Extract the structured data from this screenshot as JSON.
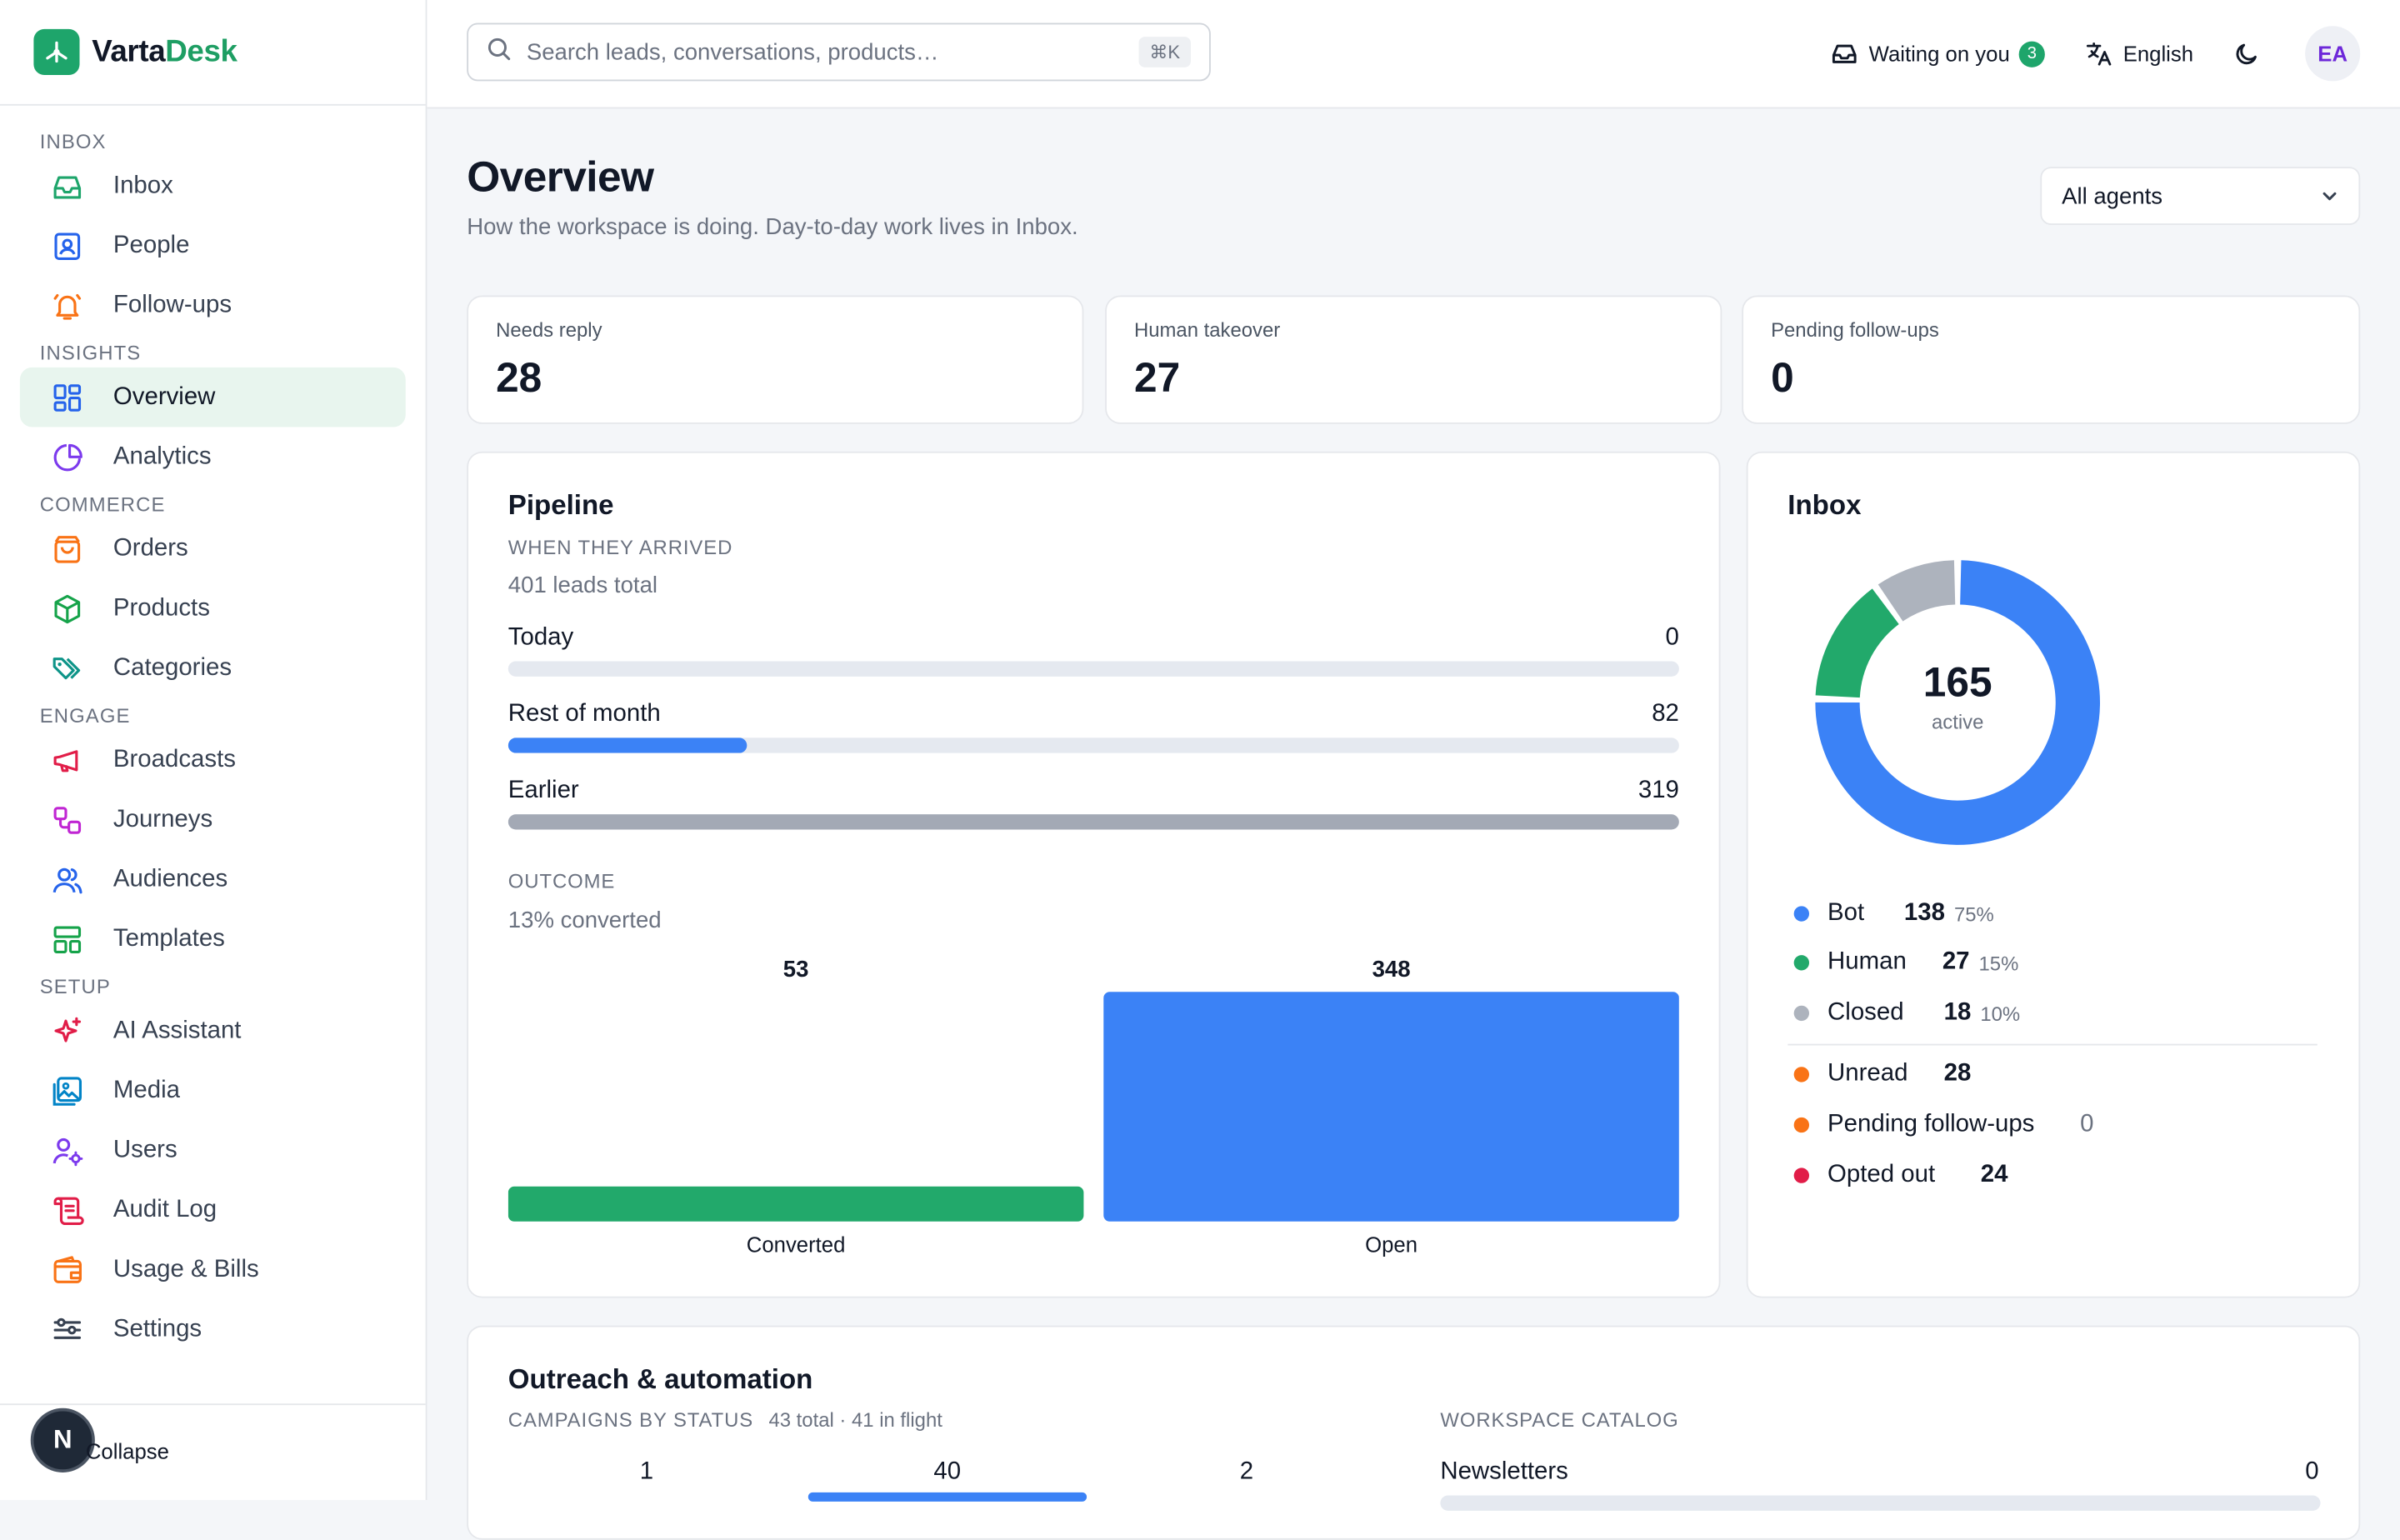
{
  "brand": {
    "prefix": "V",
    "name_dark": "arta",
    "name_green": "Desk"
  },
  "sidebar": {
    "sections": [
      {
        "label": "INBOX",
        "items": [
          {
            "label": "Inbox",
            "icon": "inbox-icon",
            "color": "#1ea56b"
          },
          {
            "label": "People",
            "icon": "contact-icon",
            "color": "#2563eb"
          },
          {
            "label": "Follow-ups",
            "icon": "bell-icon",
            "color": "#f97316"
          }
        ]
      },
      {
        "label": "INSIGHTS",
        "items": [
          {
            "label": "Overview",
            "icon": "grid-icon",
            "color": "#2563eb",
            "active": true
          },
          {
            "label": "Analytics",
            "icon": "pie-icon",
            "color": "#7c3aed"
          }
        ]
      },
      {
        "label": "COMMERCE",
        "items": [
          {
            "label": "Orders",
            "icon": "bag-icon",
            "color": "#f97316"
          },
          {
            "label": "Products",
            "icon": "box-icon",
            "color": "#16a34a"
          },
          {
            "label": "Categories",
            "icon": "tags-icon",
            "color": "#0d9488"
          }
        ]
      },
      {
        "label": "ENGAGE",
        "items": [
          {
            "label": "Broadcasts",
            "icon": "megaphone-icon",
            "color": "#e11d48"
          },
          {
            "label": "Journeys",
            "icon": "workflow-icon",
            "color": "#c026d3"
          },
          {
            "label": "Audiences",
            "icon": "users-icon",
            "color": "#2563eb"
          },
          {
            "label": "Templates",
            "icon": "layout-icon",
            "color": "#16a34a"
          }
        ]
      },
      {
        "label": "SETUP",
        "items": [
          {
            "label": "AI Assistant",
            "icon": "sparkles-icon",
            "color": "#e11d48"
          },
          {
            "label": "Media",
            "icon": "image-icon",
            "color": "#0284c7"
          },
          {
            "label": "Users",
            "icon": "user-cog-icon",
            "color": "#7c3aed"
          },
          {
            "label": "Audit Log",
            "icon": "scroll-icon",
            "color": "#e11d48"
          },
          {
            "label": "Usage & Bills",
            "icon": "wallet-icon",
            "color": "#f97316"
          },
          {
            "label": "Settings",
            "icon": "sliders-icon",
            "color": "#374151"
          }
        ]
      }
    ],
    "collapse_label": "Collapse",
    "fab_letter": "N"
  },
  "topbar": {
    "search_placeholder": "Search leads, conversations, products…",
    "shortcut": "⌘K",
    "waiting_label": "Waiting on you",
    "waiting_count": "3",
    "language": "English",
    "avatar_initials": "EA"
  },
  "page": {
    "title": "Overview",
    "subtitle": "How the workspace is doing. Day-to-day work lives in Inbox.",
    "agent_filter": "All agents"
  },
  "kpis": [
    {
      "label": "Needs reply",
      "value": "28"
    },
    {
      "label": "Human takeover",
      "value": "27"
    },
    {
      "label": "Pending follow-ups",
      "value": "0"
    }
  ],
  "pipeline": {
    "title": "Pipeline",
    "arrived_label": "WHEN THEY ARRIVED",
    "total_text": "401 leads total",
    "rows": [
      {
        "label": "Today",
        "value": 0,
        "value_text": "0",
        "fraction": 0.0,
        "color": "#3b82f6"
      },
      {
        "label": "Rest of month",
        "value": 82,
        "value_text": "82",
        "fraction": 0.2045,
        "color": "#3b82f6"
      },
      {
        "label": "Earlier",
        "value": 319,
        "value_text": "319",
        "fraction": 1.0,
        "color": "#a3a9b5"
      }
    ],
    "outcome_label": "OUTCOME",
    "outcome_text": "13% converted"
  },
  "chart_data": {
    "type": "bar",
    "categories": [
      "Converted",
      "Open"
    ],
    "values": [
      53,
      348
    ],
    "value_labels": [
      "53",
      "348"
    ],
    "colors": [
      "#22a96b",
      "#3b82f6"
    ],
    "title": "",
    "xlabel": "",
    "ylabel": "",
    "ylim": [
      0,
      348
    ]
  },
  "inbox": {
    "title": "Inbox",
    "center_value": "165",
    "center_label": "active",
    "donut": [
      {
        "name": "Bot",
        "value": 138,
        "color": "#3b82f6"
      },
      {
        "name": "Human",
        "value": 27,
        "color": "#22a96b"
      },
      {
        "name": "Closed",
        "value": 18,
        "color": "#adb3bd"
      }
    ],
    "legend": [
      {
        "label": "Bot",
        "value": "138",
        "pct": "75%",
        "color": "#3b82f6"
      },
      {
        "label": "Human",
        "value": "27",
        "pct": "15%",
        "color": "#22a96b"
      },
      {
        "label": "Closed",
        "value": "18",
        "pct": "10%",
        "color": "#adb3bd"
      }
    ],
    "extra": [
      {
        "label": "Unread",
        "value": "28",
        "color": "#f97316"
      },
      {
        "label": "Pending follow-ups",
        "value": "0",
        "color": "#f97316"
      },
      {
        "label": "Opted out",
        "value": "24",
        "color": "#e11d48"
      }
    ]
  },
  "outreach": {
    "title": "Outreach & automation",
    "campaigns_label": "CAMPAIGNS BY STATUS",
    "campaigns_meta": "43 total · 41 in flight",
    "status_counts": [
      "1",
      "40",
      "2"
    ],
    "catalog_label": "WORKSPACE CATALOG",
    "catalog_rows": [
      {
        "label": "Newsletters",
        "value": "0"
      }
    ]
  }
}
